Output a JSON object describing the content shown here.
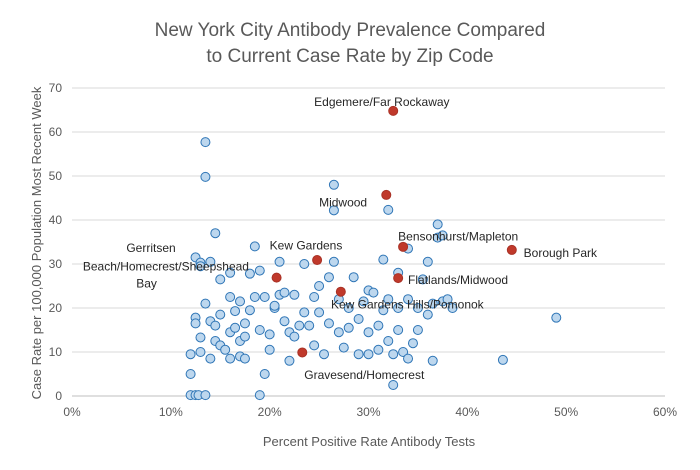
{
  "chart_data": {
    "type": "scatter",
    "title_lines": [
      "New York City Antibody Prevalence Compared",
      "to Current Case Rate by Zip Code"
    ],
    "xlabel": "Percent Positive Rate Antibody Tests",
    "ylabel": "Case Rate per 100,000 Population Most Recent Week",
    "xlim": [
      0,
      0.6
    ],
    "ylim": [
      0,
      70
    ],
    "x_ticks": [
      0,
      0.1,
      0.2,
      0.3,
      0.4,
      0.5,
      0.6
    ],
    "x_tick_labels": [
      "0%",
      "10%",
      "20%",
      "30%",
      "40%",
      "50%",
      "60%"
    ],
    "y_ticks": [
      0,
      10,
      20,
      30,
      40,
      50,
      60,
      70
    ],
    "y_tick_labels": [
      "0",
      "10",
      "20",
      "30",
      "40",
      "50",
      "60",
      "70"
    ],
    "grid": "horizontal",
    "legend": "none",
    "colors": {
      "base_fill": "#bdd7ee",
      "base_stroke": "#2e75b6",
      "highlight_fill": "#c0392b",
      "highlight_stroke": "#a93226"
    },
    "series": [
      {
        "style": "base",
        "points": [
          [
            0.135,
            57.7
          ],
          [
            0.135,
            49.8
          ],
          [
            0.145,
            37.0
          ],
          [
            0.125,
            31.5
          ],
          [
            0.13,
            30.3
          ],
          [
            0.13,
            29.5
          ],
          [
            0.14,
            30.5
          ],
          [
            0.15,
            26.5
          ],
          [
            0.125,
            17.8
          ],
          [
            0.12,
            9.5
          ],
          [
            0.12,
            5.0
          ],
          [
            0.125,
            16.5
          ],
          [
            0.13,
            13.3
          ],
          [
            0.13,
            10.0
          ],
          [
            0.135,
            21.0
          ],
          [
            0.14,
            17.0
          ],
          [
            0.14,
            8.5
          ],
          [
            0.145,
            12.5
          ],
          [
            0.145,
            16.0
          ],
          [
            0.15,
            11.5
          ],
          [
            0.15,
            18.5
          ],
          [
            0.155,
            10.5
          ],
          [
            0.16,
            14.5
          ],
          [
            0.16,
            22.5
          ],
          [
            0.16,
            28.0
          ],
          [
            0.165,
            15.5
          ],
          [
            0.165,
            19.3
          ],
          [
            0.17,
            12.5
          ],
          [
            0.17,
            21.5
          ],
          [
            0.17,
            9.0
          ],
          [
            0.175,
            16.5
          ],
          [
            0.175,
            13.5
          ],
          [
            0.18,
            27.8
          ],
          [
            0.18,
            19.5
          ],
          [
            0.185,
            22.5
          ],
          [
            0.185,
            34.0
          ],
          [
            0.19,
            15.0
          ],
          [
            0.19,
            28.5
          ],
          [
            0.195,
            5.0
          ],
          [
            0.195,
            22.5
          ],
          [
            0.2,
            14.0
          ],
          [
            0.2,
            10.5
          ],
          [
            0.205,
            20.0
          ],
          [
            0.21,
            23.0
          ],
          [
            0.21,
            30.5
          ],
          [
            0.215,
            17.0
          ],
          [
            0.22,
            14.5
          ],
          [
            0.22,
            8.0
          ],
          [
            0.225,
            23.0
          ],
          [
            0.225,
            13.5
          ],
          [
            0.23,
            16.0
          ],
          [
            0.235,
            30.0
          ],
          [
            0.235,
            19.0
          ],
          [
            0.24,
            16.0
          ],
          [
            0.245,
            22.5
          ],
          [
            0.245,
            11.5
          ],
          [
            0.25,
            25.0
          ],
          [
            0.25,
            19.0
          ],
          [
            0.255,
            9.5
          ],
          [
            0.26,
            27.0
          ],
          [
            0.26,
            16.5
          ],
          [
            0.265,
            30.5
          ],
          [
            0.265,
            48.0
          ],
          [
            0.265,
            42.2
          ],
          [
            0.27,
            22.0
          ],
          [
            0.27,
            14.5
          ],
          [
            0.275,
            11.0
          ],
          [
            0.28,
            20.0
          ],
          [
            0.28,
            15.5
          ],
          [
            0.285,
            27.0
          ],
          [
            0.29,
            17.5
          ],
          [
            0.29,
            9.5
          ],
          [
            0.295,
            21.5
          ],
          [
            0.3,
            24.0
          ],
          [
            0.3,
            14.5
          ],
          [
            0.3,
            9.5
          ],
          [
            0.305,
            23.5
          ],
          [
            0.31,
            16.0
          ],
          [
            0.31,
            10.5
          ],
          [
            0.315,
            31.0
          ],
          [
            0.315,
            19.5
          ],
          [
            0.32,
            42.3
          ],
          [
            0.32,
            22.0
          ],
          [
            0.32,
            12.5
          ],
          [
            0.325,
            9.5
          ],
          [
            0.325,
            2.5
          ],
          [
            0.33,
            28.0
          ],
          [
            0.33,
            20.0
          ],
          [
            0.33,
            15.0
          ],
          [
            0.335,
            10.0
          ],
          [
            0.34,
            33.5
          ],
          [
            0.34,
            22.0
          ],
          [
            0.34,
            8.5
          ],
          [
            0.345,
            12.0
          ],
          [
            0.35,
            20.0
          ],
          [
            0.35,
            15.0
          ],
          [
            0.355,
            26.5
          ],
          [
            0.36,
            30.5
          ],
          [
            0.36,
            18.5
          ],
          [
            0.365,
            21.0
          ],
          [
            0.365,
            8.0
          ],
          [
            0.37,
            39.0
          ],
          [
            0.37,
            36.0
          ],
          [
            0.375,
            36.5
          ],
          [
            0.375,
            21.5
          ],
          [
            0.38,
            22.0
          ],
          [
            0.385,
            20.0
          ],
          [
            0.436,
            8.2
          ],
          [
            0.49,
            17.8
          ],
          [
            0.12,
            0.2
          ],
          [
            0.125,
            0.2
          ],
          [
            0.128,
            0.2
          ],
          [
            0.135,
            0.2
          ],
          [
            0.19,
            0.2
          ],
          [
            0.16,
            8.5
          ],
          [
            0.175,
            8.5
          ],
          [
            0.205,
            20.5
          ],
          [
            0.215,
            23.5
          ]
        ]
      },
      {
        "style": "highlight",
        "points": [
          [
            0.325,
            64.8
          ],
          [
            0.318,
            45.7
          ],
          [
            0.335,
            33.9
          ],
          [
            0.445,
            33.2
          ],
          [
            0.33,
            26.8
          ],
          [
            0.248,
            30.9
          ],
          [
            0.207,
            26.9
          ],
          [
            0.272,
            23.7
          ],
          [
            0.233,
            9.9
          ]
        ]
      }
    ],
    "annotations": [
      {
        "text": "Edgemere/Far Rockaway",
        "x": 0.245,
        "y": 66.8,
        "anchor": "start"
      },
      {
        "text": "Midwood",
        "x": 0.25,
        "y": 44.0,
        "anchor": "start"
      },
      {
        "text": "Bensonhurst/Mapleton",
        "x": 0.33,
        "y": 36.2,
        "anchor": "start"
      },
      {
        "text": "Borough Park",
        "x": 0.457,
        "y": 32.5,
        "anchor": "start"
      },
      {
        "text": "Gerritsen",
        "x": 0.055,
        "y": 33.6,
        "anchor": "start"
      },
      {
        "text": "Kew Gardens",
        "x": 0.2,
        "y": 34.2,
        "anchor": "start"
      },
      {
        "text": "Beach/Homecrest/Sheepshead",
        "x": 0.011,
        "y": 29.4,
        "anchor": "start"
      },
      {
        "text": "Bay",
        "x": 0.065,
        "y": 25.6,
        "anchor": "start"
      },
      {
        "text": "Flatlands/Midwood",
        "x": 0.34,
        "y": 26.4,
        "anchor": "start"
      },
      {
        "text": "Kew Gardens Hills/Pomonok",
        "x": 0.262,
        "y": 20.8,
        "anchor": "start"
      },
      {
        "text": "Gravesend/Homecrest",
        "x": 0.235,
        "y": 4.8,
        "anchor": "start"
      }
    ]
  }
}
